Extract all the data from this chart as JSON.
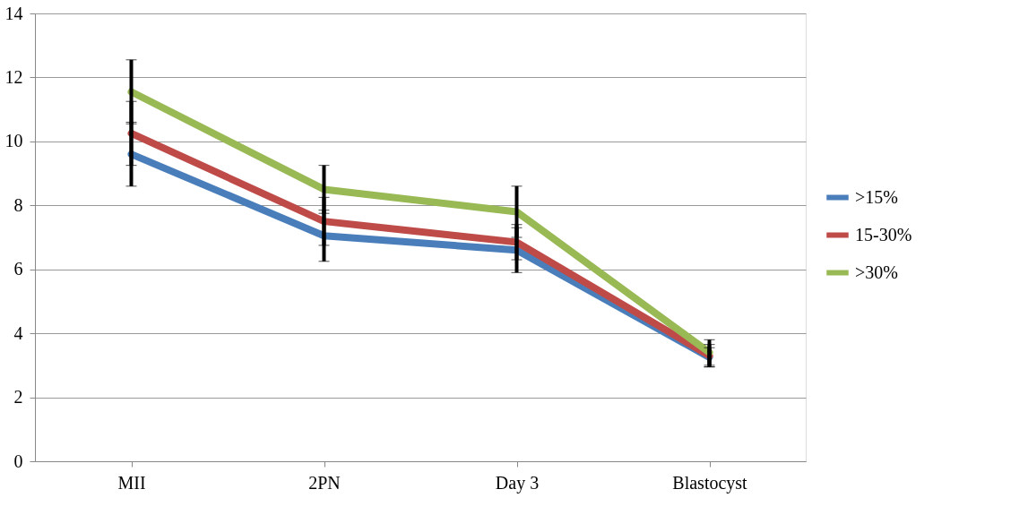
{
  "chart_data": {
    "type": "line",
    "categories": [
      "MII",
      "2PN",
      "Day 3",
      "Blastocyst"
    ],
    "series": [
      {
        "name": ">15%",
        "color": "#4a7ebb",
        "values": [
          9.6,
          7.05,
          6.6,
          3.25
        ],
        "errors": [
          1.0,
          0.8,
          0.7,
          0.3
        ]
      },
      {
        "name": "15-30%",
        "color": "#be4b48",
        "values": [
          10.25,
          7.5,
          6.85,
          3.3
        ],
        "errors": [
          1.0,
          0.75,
          0.55,
          0.35
        ]
      },
      {
        "name": ">30%",
        "color": "#98b954",
        "values": [
          11.55,
          8.5,
          7.8,
          3.4
        ],
        "errors": [
          1.0,
          0.75,
          0.8,
          0.4
        ]
      }
    ],
    "ylim": [
      0,
      14
    ],
    "yticks": [
      0,
      2,
      4,
      6,
      8,
      10,
      12,
      14
    ],
    "grid": "y",
    "legend": "right",
    "marker": "none",
    "line_style": "solid"
  }
}
